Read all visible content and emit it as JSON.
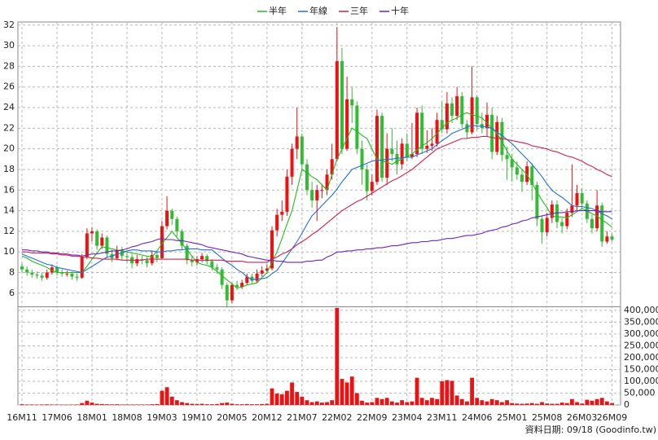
{
  "chart_data": {
    "type": "candlestick",
    "legend_position": "top",
    "grid": true,
    "up_color": "#ee1111",
    "down_color": "#33bb33",
    "volume_color": "#ee1111",
    "source": "資料日期: 09/18  (Goodinfo.tw)",
    "categories": [
      "16M11",
      null,
      null,
      null,
      null,
      null,
      null,
      "17M06",
      null,
      null,
      null,
      null,
      null,
      null,
      "18M01",
      null,
      null,
      null,
      null,
      null,
      null,
      "18M08",
      null,
      null,
      null,
      null,
      null,
      null,
      "19M03",
      null,
      null,
      null,
      null,
      null,
      null,
      "19M10",
      null,
      null,
      null,
      null,
      null,
      null,
      "20M05",
      null,
      null,
      null,
      null,
      null,
      null,
      "20M12",
      null,
      null,
      null,
      null,
      null,
      null,
      "21M07",
      null,
      null,
      null,
      null,
      null,
      null,
      "22M02",
      null,
      null,
      null,
      null,
      null,
      null,
      "22M09",
      null,
      null,
      null,
      null,
      null,
      null,
      "23M04",
      null,
      null,
      null,
      null,
      null,
      null,
      "23M11",
      null,
      null,
      null,
      null,
      null,
      null,
      "24M06",
      null,
      null,
      null,
      null,
      null,
      null,
      "25M01",
      null,
      null,
      null,
      null,
      null,
      null,
      "25M08",
      null,
      null,
      null,
      null,
      null,
      null,
      "26M03",
      null,
      null,
      null,
      null,
      null,
      "26M09"
    ],
    "open": [
      8.6,
      8.3,
      8.0,
      7.8,
      7.7,
      7.5,
      8.0,
      8.5,
      8.0,
      7.9,
      7.9,
      7.6,
      7.5,
      9.5,
      11.8,
      12.0,
      10.6,
      11.4,
      9.8,
      9.4,
      10.2,
      9.6,
      9.5,
      8.9,
      9.3,
      9.2,
      8.9,
      9.7,
      9.4,
      12.5,
      14.0,
      13.2,
      12.0,
      10.6,
      9.2,
      9.0,
      9.3,
      9.6,
      9.1,
      8.5,
      8.3,
      6.8,
      5.3,
      6.8,
      6.6,
      7.0,
      7.6,
      7.2,
      7.9,
      8.2,
      8.4,
      12.1,
      13.6,
      13.9,
      17.3,
      20.0,
      21.2,
      18.5,
      16.0,
      15.0,
      16.0,
      16.0,
      17.5,
      19.0,
      28.5,
      20.0,
      24.8,
      24.2,
      20.0,
      18.0,
      15.9,
      16.8,
      23.2,
      17.2,
      20.0,
      19.5,
      18.5,
      20.5,
      19.2,
      19.5,
      23.5,
      20.0,
      20.3,
      20.5,
      22.8,
      21.9,
      24.4,
      23.2,
      25.1,
      22.4,
      21.6,
      25.0,
      22.4,
      22.0,
      23.3,
      19.7,
      22.6,
      19.4,
      19.0,
      18.2,
      17.5,
      16.8,
      18.3,
      16.5,
      13.2,
      11.9,
      13.3,
      14.6,
      12.9,
      12.5,
      13.8,
      14.5,
      15.7,
      14.7,
      13.2,
      12.3,
      14.5,
      11.0,
      11.5
    ],
    "high": [
      8.9,
      8.6,
      8.3,
      8.1,
      8.0,
      8.3,
      8.8,
      8.7,
      8.3,
      8.2,
      8.1,
      7.9,
      9.8,
      12.3,
      12.4,
      12.2,
      11.8,
      11.6,
      10.2,
      10.6,
      10.5,
      9.9,
      9.8,
      9.7,
      9.6,
      9.5,
      10.1,
      10.0,
      13.0,
      15.4,
      14.2,
      13.4,
      12.2,
      10.8,
      9.6,
      9.6,
      9.9,
      9.8,
      9.3,
      8.8,
      8.5,
      7.0,
      7.0,
      7.2,
      7.3,
      7.9,
      7.9,
      8.3,
      8.6,
      8.8,
      12.5,
      14.2,
      15.0,
      18.0,
      20.5,
      24.0,
      21.5,
      19.0,
      16.8,
      16.5,
      16.6,
      18.0,
      20.5,
      31.8,
      29.8,
      27.0,
      26.0,
      24.6,
      20.8,
      18.5,
      17.5,
      23.8,
      23.5,
      21.5,
      22.0,
      20.8,
      21.0,
      21.5,
      22.5,
      24.0,
      24.2,
      21.8,
      22.0,
      23.5,
      24.6,
      25.5,
      25.0,
      26.0,
      25.5,
      22.8,
      28.0,
      25.2,
      23.5,
      24.5,
      24.0,
      23.2,
      23.0,
      20.2,
      19.5,
      18.8,
      18.0,
      18.8,
      18.6,
      16.8,
      13.5,
      13.8,
      15.0,
      15.0,
      13.3,
      14.2,
      18.5,
      16.5,
      16.2,
      15.0,
      13.6,
      16.0,
      14.8,
      12.0,
      11.8
    ],
    "low": [
      8.0,
      7.7,
      7.5,
      7.4,
      7.2,
      7.3,
      7.8,
      7.7,
      7.6,
      7.6,
      7.3,
      7.2,
      7.4,
      9.3,
      11.0,
      10.2,
      10.3,
      9.4,
      9.0,
      9.2,
      9.2,
      9.0,
      8.4,
      8.6,
      8.8,
      8.5,
      8.7,
      9.0,
      9.3,
      12.2,
      12.6,
      11.5,
      10.2,
      8.8,
      8.6,
      8.7,
      9.0,
      8.8,
      8.2,
      7.9,
      6.4,
      4.6,
      5.0,
      6.3,
      6.4,
      6.8,
      7.0,
      7.0,
      7.6,
      7.9,
      8.2,
      11.5,
      13.0,
      13.5,
      16.5,
      19.0,
      17.8,
      15.5,
      14.3,
      13.0,
      15.2,
      15.5,
      17.0,
      18.8,
      19.5,
      19.8,
      22.5,
      19.5,
      16.5,
      15.0,
      15.5,
      16.5,
      16.8,
      16.5,
      18.8,
      17.5,
      18.0,
      18.8,
      19.0,
      19.2,
      19.5,
      19.6,
      19.8,
      20.2,
      21.5,
      21.5,
      22.5,
      22.8,
      22.0,
      21.0,
      21.4,
      21.8,
      21.5,
      21.2,
      19.0,
      19.4,
      18.8,
      17.0,
      16.8,
      17.0,
      15.8,
      16.5,
      15.0,
      12.5,
      10.8,
      11.5,
      12.8,
      12.3,
      11.8,
      12.2,
      13.4,
      14.0,
      14.2,
      12.8,
      11.8,
      12.0,
      10.5,
      10.8,
      11.0
    ],
    "close": [
      8.3,
      8.0,
      7.8,
      7.7,
      7.5,
      8.0,
      8.5,
      8.0,
      7.9,
      7.9,
      7.6,
      7.5,
      9.5,
      11.8,
      12.0,
      10.6,
      11.4,
      9.8,
      9.4,
      10.2,
      9.6,
      9.5,
      8.9,
      9.3,
      9.2,
      8.9,
      9.7,
      9.4,
      12.5,
      14.0,
      13.2,
      12.0,
      10.6,
      9.2,
      9.0,
      9.3,
      9.6,
      9.1,
      8.5,
      8.3,
      6.8,
      5.3,
      6.8,
      6.6,
      7.0,
      7.6,
      7.2,
      7.9,
      8.2,
      8.4,
      12.1,
      13.6,
      13.9,
      17.3,
      20.0,
      21.2,
      18.5,
      16.0,
      15.0,
      16.0,
      16.0,
      17.5,
      19.0,
      28.5,
      20.0,
      24.8,
      24.2,
      20.0,
      18.0,
      15.9,
      16.8,
      23.2,
      17.2,
      20.0,
      19.5,
      18.5,
      20.5,
      19.2,
      19.5,
      23.5,
      20.0,
      20.3,
      20.5,
      22.8,
      21.9,
      24.4,
      23.2,
      25.1,
      22.4,
      21.6,
      25.0,
      22.4,
      22.0,
      23.3,
      19.7,
      22.6,
      19.4,
      19.0,
      18.2,
      17.5,
      16.8,
      18.3,
      16.5,
      13.2,
      11.9,
      13.3,
      14.6,
      12.9,
      12.5,
      13.8,
      14.5,
      15.7,
      14.7,
      13.2,
      12.3,
      14.5,
      11.0,
      11.5,
      11.2
    ],
    "volume": [
      3000,
      2000,
      2000,
      1500,
      2000,
      2500,
      2000,
      1500,
      1500,
      1500,
      1500,
      2000,
      8000,
      18000,
      10000,
      5000,
      4000,
      3000,
      2500,
      3000,
      2000,
      2000,
      2000,
      2000,
      2000,
      2000,
      3000,
      4000,
      60000,
      75000,
      35000,
      20000,
      12000,
      8000,
      5000,
      4000,
      5000,
      3000,
      3000,
      4000,
      8000,
      10000,
      5000,
      3000,
      3000,
      4000,
      3000,
      3000,
      4000,
      5000,
      70000,
      48000,
      45000,
      60000,
      95000,
      55000,
      35000,
      20000,
      12000,
      15000,
      10000,
      12000,
      20000,
      410000,
      110000,
      95000,
      120000,
      50000,
      18000,
      10000,
      12000,
      30000,
      25000,
      30000,
      15000,
      10000,
      20000,
      12000,
      15000,
      115000,
      30000,
      20000,
      30000,
      25000,
      100000,
      105000,
      102000,
      40000,
      25000,
      15000,
      115000,
      30000,
      20000,
      15000,
      25000,
      20000,
      12000,
      20000,
      8000,
      6000,
      5000,
      6000,
      8000,
      5000,
      12000,
      6000,
      5000,
      5000,
      10000,
      8000,
      25000,
      12000,
      6000,
      22000,
      18000,
      25000,
      30000,
      15000,
      8000
    ],
    "series": [
      {
        "name": "半年",
        "color": "#22bb22",
        "values": [
          9.6,
          9.4,
          9.1,
          8.9,
          8.7,
          8.5,
          8.2,
          8.0,
          8.0,
          8.0,
          8.0,
          8.0,
          8.0,
          8.6,
          9.3,
          9.9,
          10.5,
          10.4,
          10.3,
          10.2,
          10.1,
          10.0,
          9.9,
          9.8,
          9.7,
          9.6,
          9.5,
          10.1,
          10.8,
          11.4,
          12.0,
          11.4,
          10.8,
          10.2,
          9.6,
          9.0,
          8.8,
          8.7,
          8.5,
          8.1,
          7.7,
          7.3,
          6.9,
          6.5,
          6.6,
          6.8,
          6.9,
          7.0,
          7.5,
          8.0,
          9.0,
          10.0,
          11.3,
          12.7,
          14.0,
          16.0,
          18.0,
          17.7,
          17.3,
          17.0,
          16.5,
          16.0,
          17.5,
          19.0,
          20.0,
          21.0,
          22.0,
          21.7,
          21.3,
          21.0,
          20.0,
          19.0,
          18.8,
          18.7,
          18.5,
          18.8,
          19.0,
          19.3,
          19.5,
          19.9,
          20.3,
          20.6,
          21.0,
          21.5,
          22.0,
          22.5,
          22.8,
          23.0,
          23.3,
          23.5,
          23.3,
          23.2,
          23.0,
          22.5,
          22.0,
          21.5,
          20.7,
          19.8,
          19.0,
          18.5,
          18.0,
          17.5,
          16.7,
          15.8,
          15.0,
          14.3,
          13.5,
          13.4,
          13.4,
          13.3,
          13.6,
          13.9,
          14.2,
          14.0,
          13.7,
          13.5,
          13.1,
          12.8,
          12.4
        ]
      },
      {
        "name": "年線",
        "color": "#1f6fe0",
        "values": [
          9.8,
          9.6,
          9.4,
          9.2,
          9.0,
          8.8,
          8.7,
          8.5,
          8.4,
          8.3,
          8.2,
          8.1,
          8.0,
          8.3,
          8.6,
          8.9,
          9.2,
          9.5,
          9.6,
          9.8,
          9.9,
          10.1,
          10.2,
          10.2,
          10.1,
          10.1,
          10.1,
          10.0,
          10.0,
          10.1,
          10.1,
          10.2,
          10.2,
          10.3,
          10.3,
          10.3,
          10.2,
          10.2,
          10.2,
          9.8,
          9.4,
          9.0,
          8.7,
          8.3,
          8.0,
          7.6,
          7.3,
          7.4,
          7.4,
          7.5,
          7.9,
          8.2,
          8.9,
          9.6,
          10.3,
          11.0,
          11.8,
          12.7,
          13.5,
          14.0,
          14.5,
          15.0,
          15.5,
          16.1,
          16.8,
          17.4,
          18.0,
          18.2,
          18.4,
          18.6,
          18.8,
          18.9,
          18.9,
          19.0,
          19.0,
          19.1,
          19.1,
          19.2,
          19.2,
          19.4,
          19.6,
          19.8,
          20.0,
          20.4,
          20.8,
          21.1,
          21.5,
          21.7,
          21.9,
          22.1,
          22.3,
          22.2,
          22.2,
          22.1,
          22.0,
          21.6,
          21.3,
          20.9,
          20.5,
          20.0,
          19.5,
          19.0,
          18.5,
          17.9,
          17.3,
          16.6,
          16.0,
          15.6,
          15.3,
          14.9,
          14.5,
          14.4,
          14.4,
          14.3,
          14.2,
          14.0,
          13.7,
          13.5,
          13.2
        ]
      },
      {
        "name": "三年",
        "color": "#d0204a",
        "values": [
          10.0,
          10.0,
          9.9,
          9.9,
          9.9,
          9.9,
          9.8,
          9.8,
          9.7,
          9.7,
          9.6,
          9.6,
          9.5,
          9.5,
          9.4,
          9.4,
          9.3,
          9.3,
          9.3,
          9.3,
          9.2,
          9.2,
          9.2,
          9.2,
          9.2,
          9.3,
          9.3,
          9.3,
          9.3,
          9.3,
          9.3,
          9.3,
          9.3,
          9.3,
          9.2,
          9.2,
          9.2,
          9.2,
          9.2,
          9.2,
          9.2,
          9.1,
          9.1,
          9.1,
          9.1,
          9.0,
          9.0,
          9.0,
          9.0,
          9.0,
          9.3,
          9.5,
          9.8,
          10.0,
          10.3,
          10.7,
          11.0,
          11.3,
          11.7,
          12.0,
          12.4,
          12.8,
          13.2,
          13.6,
          14.0,
          14.3,
          14.6,
          14.9,
          15.1,
          15.4,
          15.7,
          16.0,
          16.3,
          16.6,
          16.9,
          17.1,
          17.4,
          17.7,
          18.0,
          18.4,
          18.8,
          19.2,
          19.6,
          20.0,
          20.2,
          20.4,
          20.6,
          20.8,
          21.0,
          21.0,
          21.1,
          21.1,
          21.2,
          21.2,
          21.1,
          21.0,
          21.0,
          20.9,
          20.8,
          20.7,
          20.6,
          20.5,
          20.3,
          20.2,
          20.1,
          20.0,
          19.8,
          19.7,
          19.5,
          19.3,
          19.2,
          19.0,
          18.8,
          18.5,
          18.3,
          18.0,
          17.8,
          17.5,
          17.3
        ]
      },
      {
        "name": "十年",
        "color": "#7022c0",
        "values": [
          10.2,
          10.2,
          10.1,
          10.1,
          10.0,
          10.0,
          9.9,
          9.9,
          9.8,
          9.8,
          9.7,
          9.7,
          9.6,
          9.7,
          9.8,
          9.8,
          9.9,
          10.0,
          10.1,
          10.1,
          10.2,
          10.3,
          10.5,
          10.6,
          10.8,
          10.9,
          11.0,
          11.2,
          11.3,
          11.2,
          11.2,
          11.1,
          11.1,
          11.0,
          10.9,
          10.8,
          10.7,
          10.5,
          10.4,
          10.3,
          10.2,
          10.1,
          10.0,
          9.9,
          9.8,
          9.6,
          9.5,
          9.4,
          9.3,
          9.2,
          9.2,
          9.1,
          9.1,
          9.0,
          9.0,
          9.0,
          9.0,
          9.1,
          9.1,
          9.2,
          9.2,
          9.5,
          9.7,
          10.0,
          10.0,
          10.1,
          10.1,
          10.2,
          10.2,
          10.3,
          10.3,
          10.4,
          10.4,
          10.5,
          10.6,
          10.6,
          10.7,
          10.8,
          10.9,
          10.9,
          11.0,
          11.0,
          11.1,
          11.1,
          11.2,
          11.3,
          11.3,
          11.4,
          11.5,
          11.6,
          11.6,
          11.7,
          11.8,
          12.0,
          12.1,
          12.2,
          12.4,
          12.5,
          12.7,
          12.8,
          13.0,
          13.1,
          13.3,
          13.4,
          13.5,
          13.6,
          13.7,
          13.8,
          13.8,
          13.9,
          13.9,
          14.0,
          14.0,
          14.0,
          14.0,
          14.0,
          13.9,
          13.9,
          13.9
        ]
      }
    ],
    "ylim": [
      4.8,
      32.3
    ],
    "yticks": [
      6,
      8,
      10,
      12,
      14,
      16,
      18,
      20,
      22,
      24,
      26,
      28,
      30,
      32
    ],
    "y2lim": [
      0,
      410000
    ],
    "y2ticks": [
      0,
      {
        "value": 50000,
        "label": "50,000"
      },
      {
        "value": 100000,
        "label": "100,000"
      },
      {
        "value": 150000,
        "label": "150,000"
      },
      {
        "value": 200000,
        "label": "200,000"
      },
      {
        "value": 250000,
        "label": "250,000"
      },
      {
        "value": 300000,
        "label": "300,000"
      },
      {
        "value": 350000,
        "label": "350,000"
      },
      {
        "value": 400000,
        "label": "400,000"
      }
    ]
  }
}
